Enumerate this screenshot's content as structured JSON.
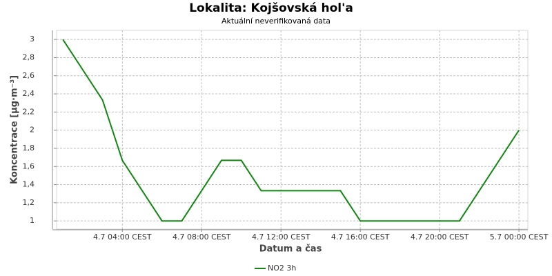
{
  "chart_data": {
    "type": "line",
    "title": "Lokalita: Kojšovská hol'a",
    "subtitle": "Aktuální neverifikovaná data",
    "x_label": "Datum a čas",
    "y_label": "Koncentrace [µg·m⁻³]",
    "x": [
      "4.7 01:00",
      "4.7 03:00",
      "4.7 04:00",
      "4.7 06:00",
      "4.7 07:00",
      "4.7 09:00",
      "4.7 10:00",
      "4.7 11:00",
      "4.7 15:00",
      "4.7 16:00",
      "4.7 21:00",
      "5.7 00:00"
    ],
    "series": [
      {
        "name": "NO2 3h",
        "color": "#118811",
        "values": [
          3,
          2.333,
          1.667,
          1,
          1,
          1.667,
          1.667,
          1.333,
          1.333,
          1,
          1,
          2
        ]
      }
    ],
    "xlim": [
      "4.7 00:41",
      "5.7 00:27"
    ],
    "xticks": [
      {
        "value": "4.7 04:00",
        "label": "4.7 04:00 CEST"
      },
      {
        "value": "4.7 08:00",
        "label": "4.7 08:00 CEST"
      },
      {
        "value": "4.7 12:00",
        "label": "4.7 12:00 CEST"
      },
      {
        "value": "4.7 16:00",
        "label": "4.7 16:00 CEST"
      },
      {
        "value": "4.7 20:00",
        "label": "4.7 20:00 CEST"
      },
      {
        "value": "5.7 00:00",
        "label": "5.7 00:00 CEST"
      }
    ],
    "ylim": [
      0.91,
      3.1
    ],
    "yticks": [
      1,
      {
        "value": 1.2,
        "label": "1,2"
      },
      {
        "value": 1.4,
        "label": "1,4"
      },
      {
        "value": 1.6,
        "label": "1,6"
      },
      {
        "value": 1.8,
        "label": "1,8"
      },
      2,
      {
        "value": 2.2,
        "label": "2,2"
      },
      {
        "value": 2.4,
        "label": "2,4"
      },
      {
        "value": 2.6,
        "label": "2,6"
      },
      {
        "value": 2.8,
        "label": "2,8"
      },
      3
    ],
    "grid": true
  }
}
